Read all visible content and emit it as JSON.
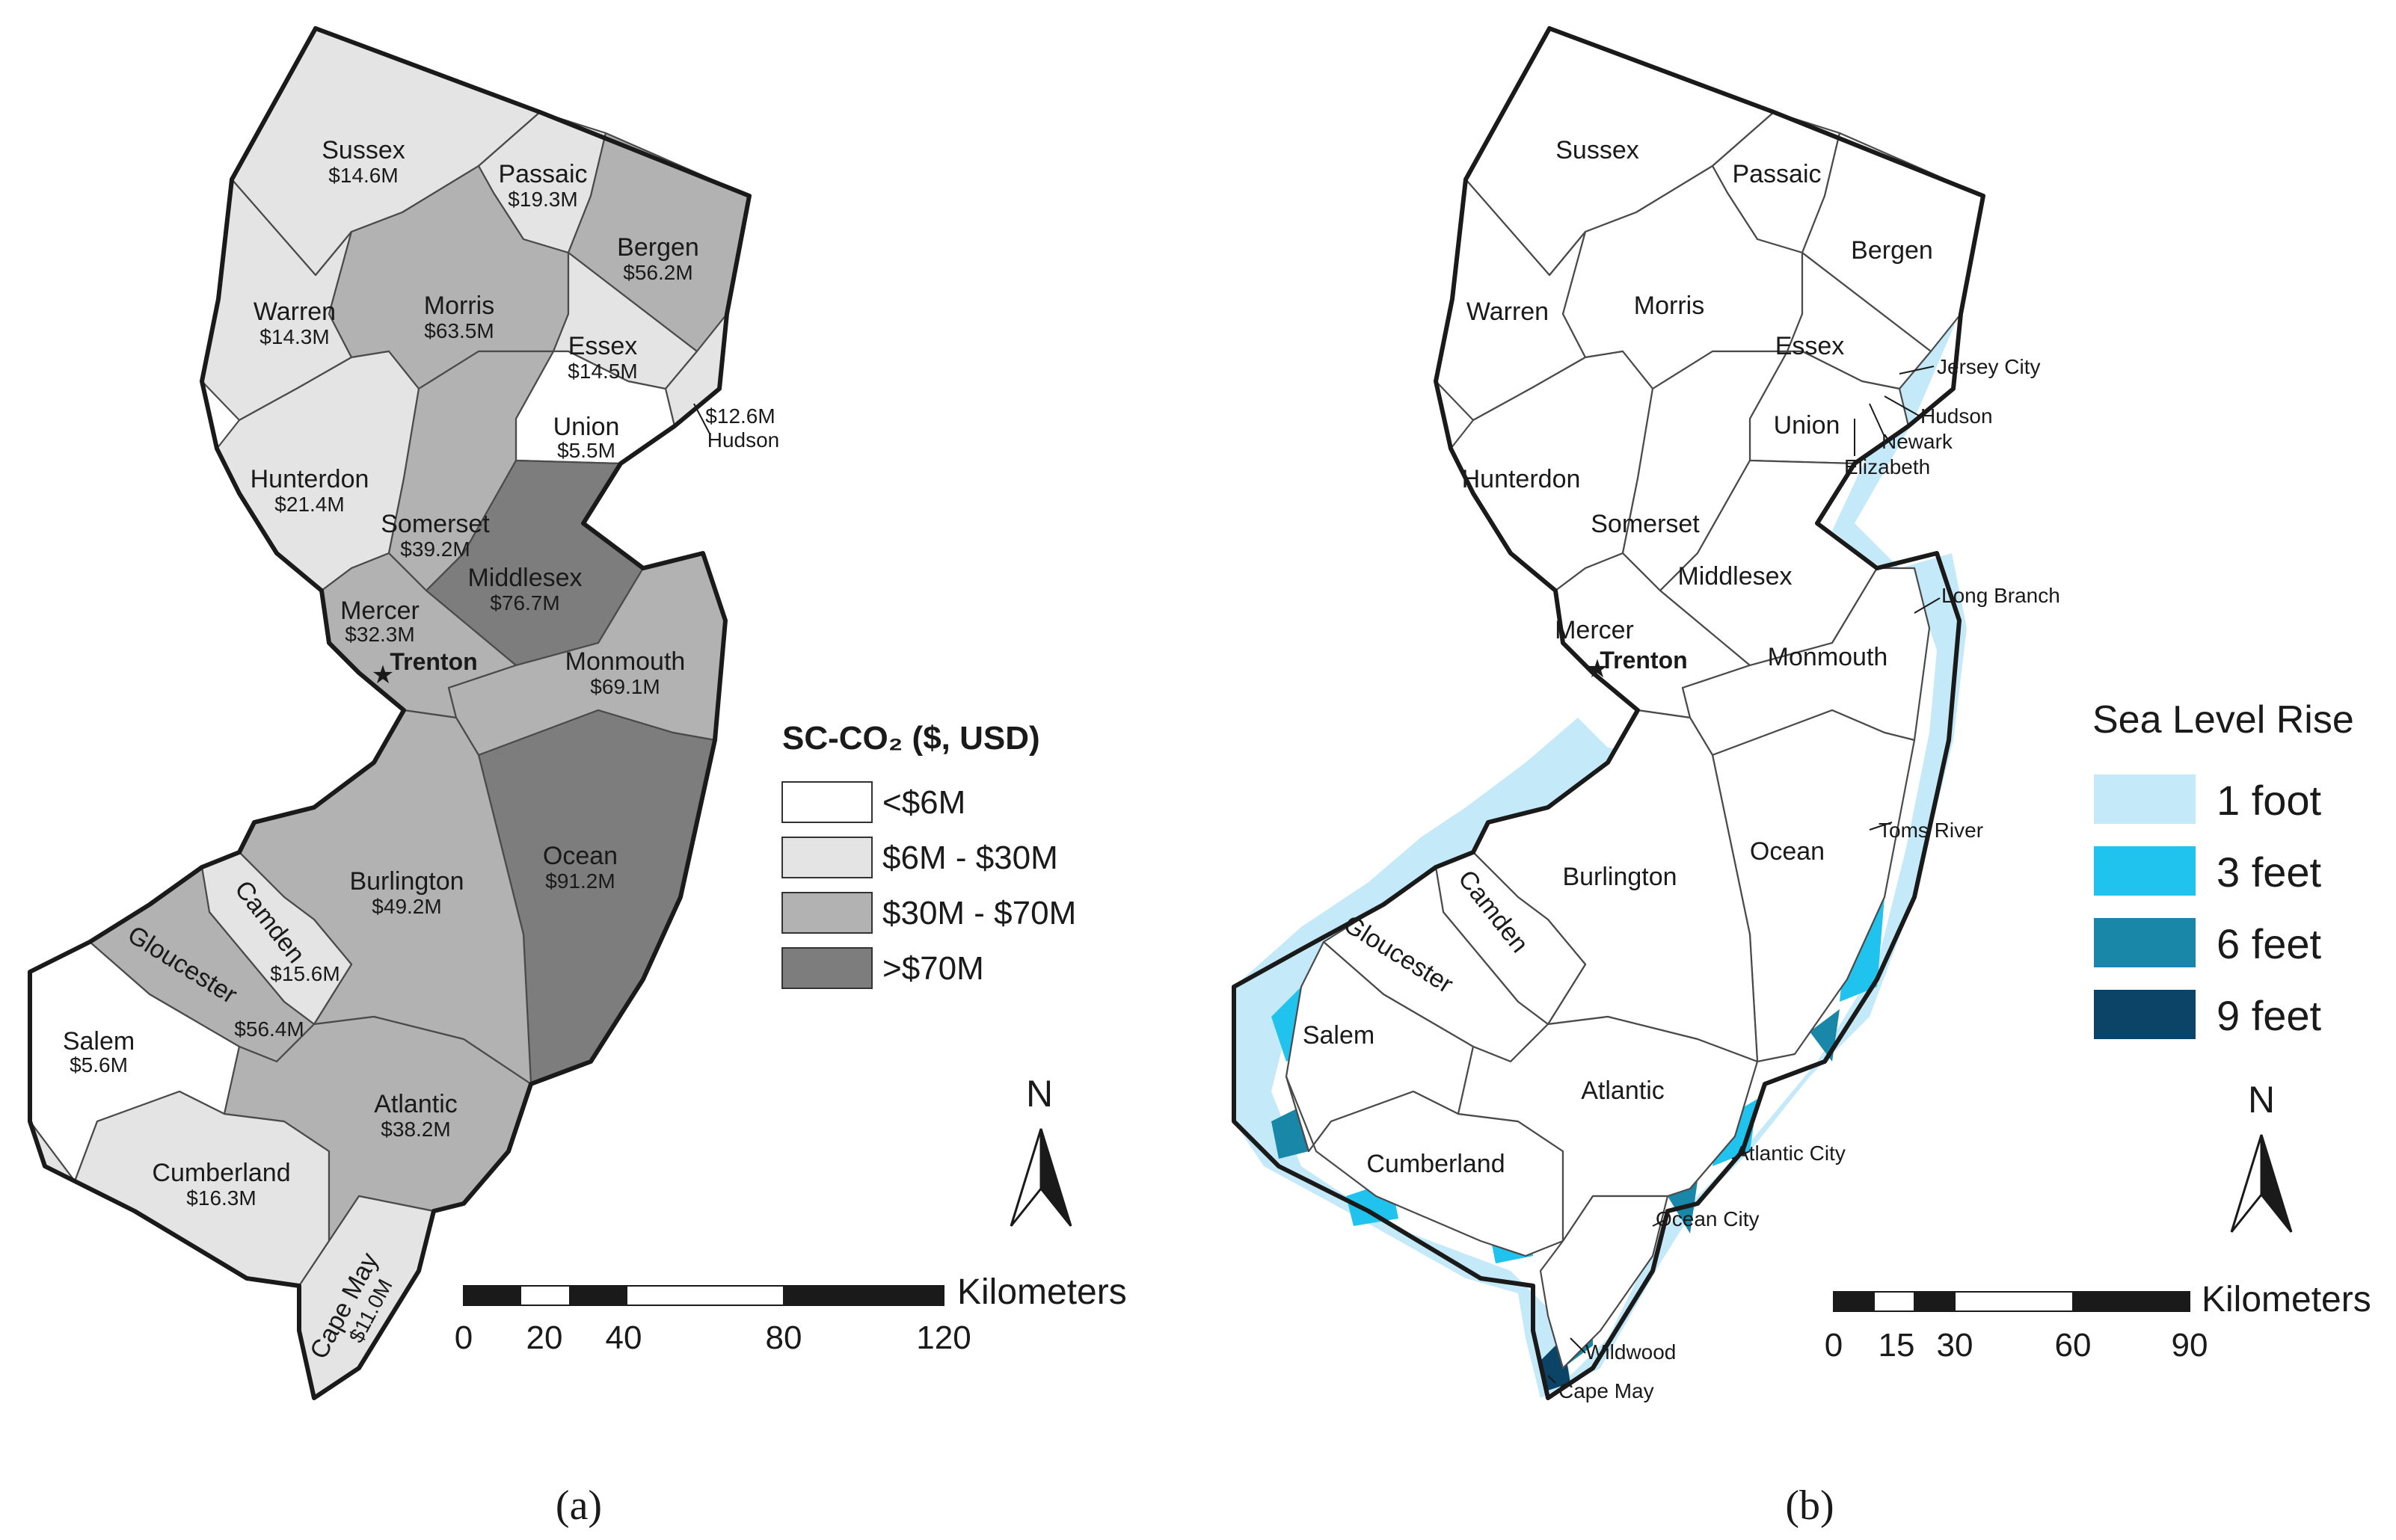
{
  "panel_a": {
    "label": "(a)",
    "legend": {
      "title": "SC-CO₂ ($, USD)",
      "classes": [
        {
          "label": "<$6M",
          "color": "#ffffff"
        },
        {
          "label": "$6M - $30M",
          "color": "#e4e4e4"
        },
        {
          "label": "$30M - $70M",
          "color": "#b2b2b2"
        },
        {
          "label": ">$70M",
          "color": "#7d7d7d"
        }
      ]
    },
    "counties": {
      "sussex": {
        "name": "Sussex",
        "value": "$14.6M",
        "color": "#e4e4e4"
      },
      "passaic": {
        "name": "Passaic",
        "value": "$19.3M",
        "color": "#e4e4e4"
      },
      "bergen": {
        "name": "Bergen",
        "value": "$56.2M",
        "color": "#b2b2b2"
      },
      "warren": {
        "name": "Warren",
        "value": "$14.3M",
        "color": "#e4e4e4"
      },
      "morris": {
        "name": "Morris",
        "value": "$63.5M",
        "color": "#b2b2b2"
      },
      "essex": {
        "name": "Essex",
        "value": "$14.5M",
        "color": "#e4e4e4"
      },
      "hudson": {
        "name": "Hudson",
        "value": "$12.6M",
        "color": "#e4e4e4"
      },
      "union": {
        "name": "Union",
        "value": "$5.5M",
        "color": "#ffffff"
      },
      "hunterdon": {
        "name": "Hunterdon",
        "value": "$21.4M",
        "color": "#e4e4e4"
      },
      "somerset": {
        "name": "Somerset",
        "value": "$39.2M",
        "color": "#b2b2b2"
      },
      "middlesex": {
        "name": "Middlesex",
        "value": "$76.7M",
        "color": "#7d7d7d"
      },
      "mercer": {
        "name": "Mercer",
        "value": "$32.3M",
        "color": "#b2b2b2"
      },
      "monmouth": {
        "name": "Monmouth",
        "value": "$69.1M",
        "color": "#b2b2b2"
      },
      "ocean": {
        "name": "Ocean",
        "value": "$91.2M",
        "color": "#7d7d7d"
      },
      "burlington": {
        "name": "Burlington",
        "value": "$49.2M",
        "color": "#b2b2b2"
      },
      "camden": {
        "name": "Camden",
        "value": "$15.6M",
        "color": "#e4e4e4"
      },
      "gloucester": {
        "name": "Gloucester",
        "value": "$56.4M",
        "color": "#b2b2b2"
      },
      "salem": {
        "name": "Salem",
        "value": "$5.6M",
        "color": "#ffffff"
      },
      "cumberland": {
        "name": "Cumberland",
        "value": "$16.3M",
        "color": "#e4e4e4"
      },
      "atlantic": {
        "name": "Atlantic",
        "value": "$38.2M",
        "color": "#b2b2b2"
      },
      "capemay": {
        "name": "Cape May",
        "value": "$11.0M",
        "color": "#e4e4e4"
      }
    },
    "capital": "Trenton",
    "north": "N",
    "scale": {
      "unit": "Kilometers",
      "ticks": [
        "0",
        "20",
        "40",
        "80",
        "120"
      ]
    }
  },
  "panel_b": {
    "label": "(b)",
    "legend": {
      "title": "Sea Level Rise",
      "classes": [
        {
          "label": "1 foot",
          "color": "#c4e9f8"
        },
        {
          "label": "3 feet",
          "color": "#1fc3ee"
        },
        {
          "label": "6 feet",
          "color": "#1887a8"
        },
        {
          "label": "9 feet",
          "color": "#0b4466"
        }
      ]
    },
    "counties": [
      "Sussex",
      "Passaic",
      "Bergen",
      "Warren",
      "Morris",
      "Essex",
      "Union",
      "Hunterdon",
      "Somerset",
      "Middlesex",
      "Mercer",
      "Monmouth",
      "Ocean",
      "Burlington",
      "Camden",
      "Gloucester",
      "Salem",
      "Cumberland",
      "Atlantic"
    ],
    "capital": "Trenton",
    "cities": [
      "Jersey City",
      "Hudson",
      "Newark",
      "Elizabeth",
      "Long Branch",
      "Toms River",
      "Atlantic City",
      "Ocean City",
      "Wildwood",
      "Cape May"
    ],
    "north": "N",
    "scale": {
      "unit": "Kilometers",
      "ticks": [
        "0",
        "15",
        "30",
        "60",
        "90"
      ]
    }
  }
}
